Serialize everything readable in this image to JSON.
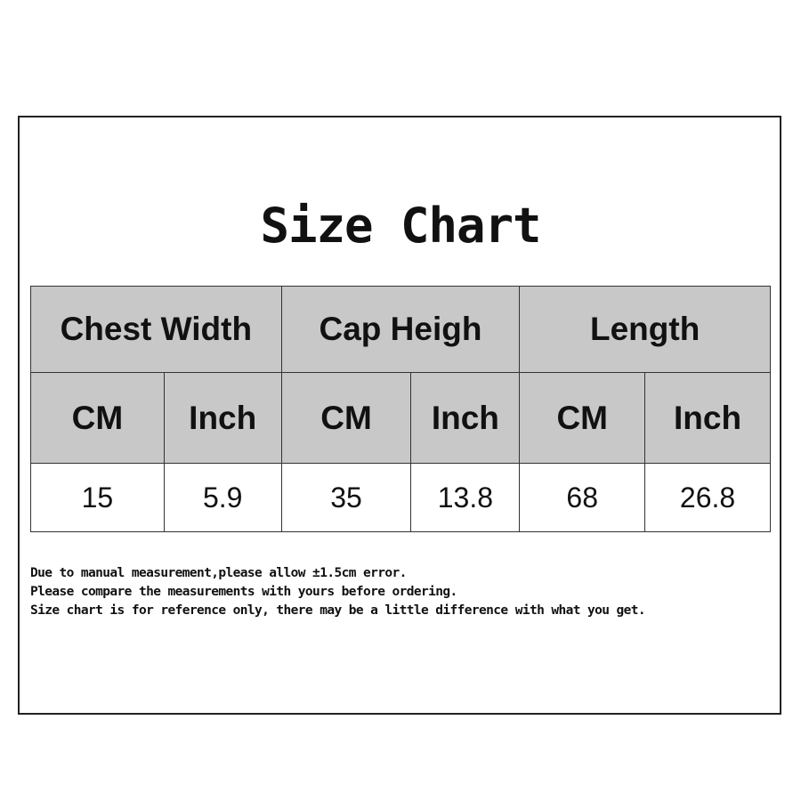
{
  "title": "Size Chart",
  "table": {
    "groups": [
      "Chest Width",
      "Cap Heigh",
      "Length"
    ],
    "units": [
      "CM",
      "Inch",
      "CM",
      "Inch",
      "CM",
      "Inch"
    ],
    "values": [
      "15",
      "5.9",
      "35",
      "13.8",
      "68",
      "26.8"
    ]
  },
  "notes": [
    "Due to manual measurement,please allow ±1.5cm error.",
    "Please compare the measurements with yours before ordering.",
    "Size chart is for reference only, there may be a little difference with what you get."
  ]
}
